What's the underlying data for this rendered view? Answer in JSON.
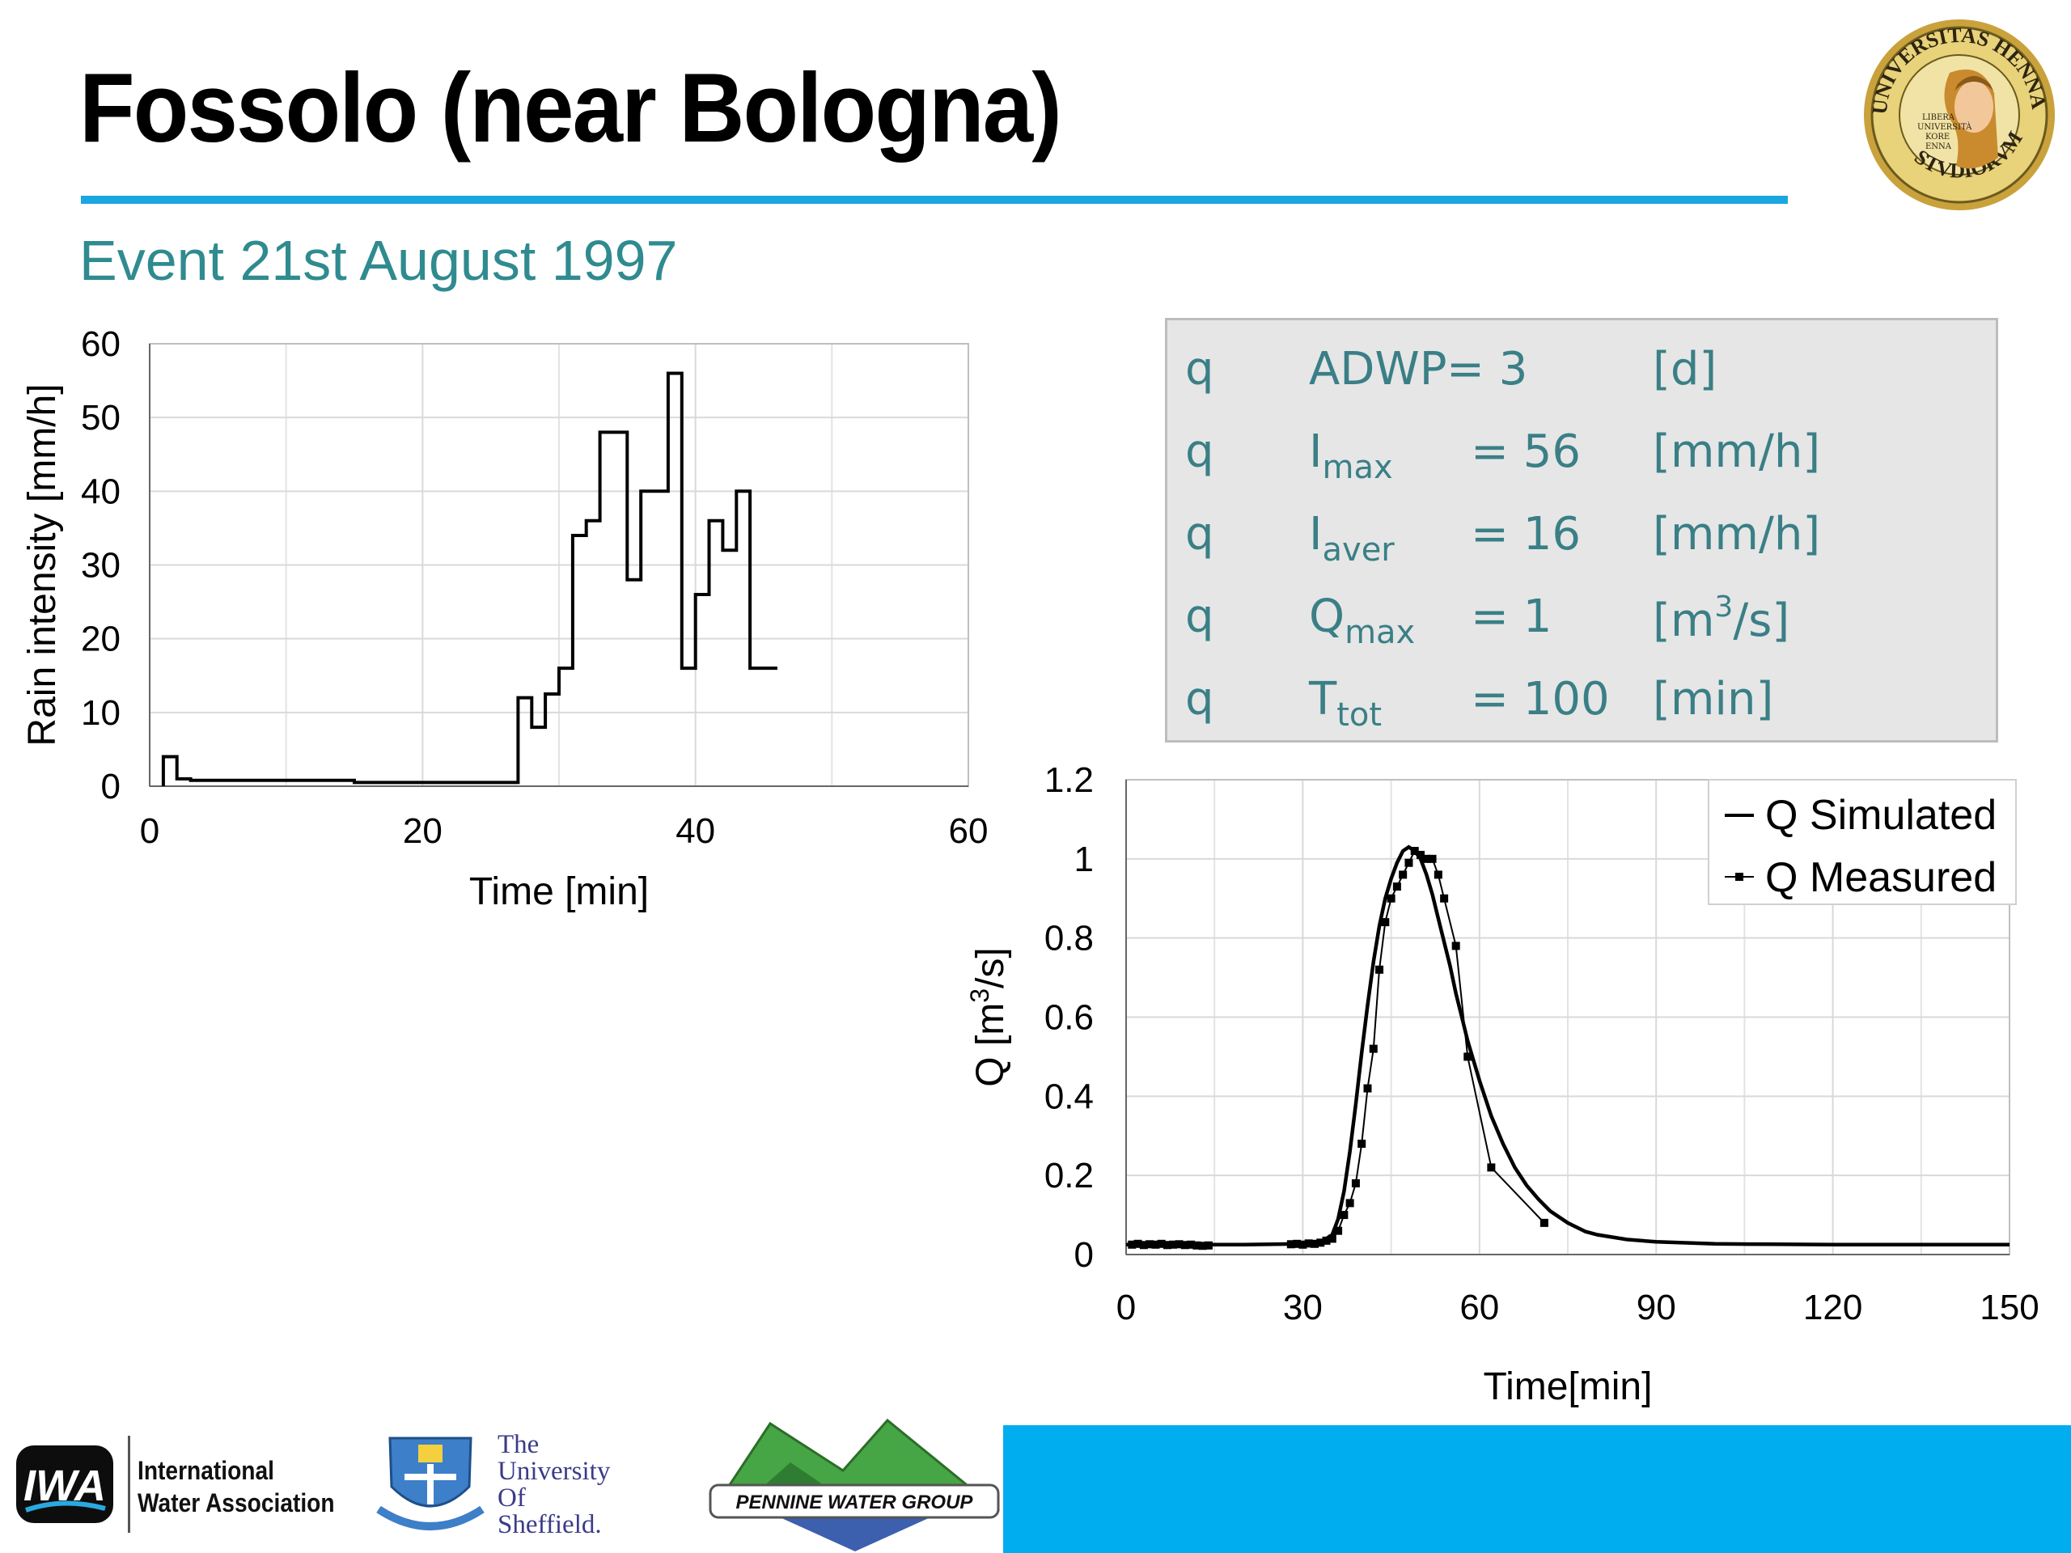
{
  "slide": {
    "title": "Fossolo (near Bologna)",
    "subtitle": "Event 21st August 1997",
    "accent_color": "#1aa7df",
    "subtitle_color": "#2f8b8f",
    "seal_text": "UNIVERSITAS HENNAE · STVDIORVM",
    "seal_inner": [
      "LIBERA",
      "UNIVERSITÀ",
      "KORE",
      "ENNA"
    ]
  },
  "parameters": [
    {
      "bullet": "q",
      "sym": "ADWP",
      "sub": "",
      "eq": "= 3",
      "unit": "[d]"
    },
    {
      "bullet": "q",
      "sym": "I",
      "sub": "max",
      "eq": "= 56",
      "unit": "[mm/h]"
    },
    {
      "bullet": "q",
      "sym": "I",
      "sub": "aver",
      "eq": "= 16",
      "unit": "[mm/h]"
    },
    {
      "bullet": "q",
      "sym": "Q",
      "sub": "max",
      "eq": "= 1",
      "unit_pre": "[m",
      "unit_sup": "3",
      "unit_post": "/s]"
    },
    {
      "bullet": "q",
      "sym": "T",
      "sub": "tot",
      "eq": "= 100",
      "unit": "[min]"
    }
  ],
  "chart_data": [
    {
      "type": "line",
      "style": "step",
      "xlabel": "Time [min]",
      "ylabel": "Rain intensity [mm/h]",
      "xlim": [
        0,
        60
      ],
      "ylim": [
        0,
        60
      ],
      "xticks": [
        "0",
        "20",
        "40",
        "60"
      ],
      "yticks": [
        "0",
        "10",
        "20",
        "30",
        "40",
        "50",
        "60"
      ],
      "grid": true,
      "series": [
        {
          "x": [
            1,
            1,
            2,
            2,
            3,
            3,
            15,
            15,
            27,
            27,
            28,
            28,
            29,
            29,
            30,
            30,
            31,
            31,
            32,
            32,
            33,
            33,
            35,
            35,
            36,
            36,
            38,
            38,
            39,
            39,
            40,
            40,
            41,
            41,
            42,
            42,
            43,
            43,
            44,
            44,
            46
          ],
          "y": [
            0,
            4,
            4,
            1,
            1,
            0.8,
            0.8,
            0.5,
            0.5,
            12,
            12,
            8,
            8,
            12.5,
            12.5,
            16,
            16,
            34,
            34,
            36,
            36,
            48,
            48,
            28,
            28,
            40,
            40,
            56,
            56,
            16,
            16,
            26,
            26,
            36,
            36,
            32,
            32,
            40,
            40,
            16,
            16
          ]
        }
      ]
    },
    {
      "type": "line",
      "xlabel": "Time[min]",
      "ylabel_pre": "Q [m",
      "ylabel_sup": "3",
      "ylabel_post": "/s]",
      "xlim": [
        0,
        150
      ],
      "ylim": [
        0,
        1.2
      ],
      "xticks": [
        "0",
        "30",
        "60",
        "90",
        "120",
        "150"
      ],
      "yticks": [
        "0",
        "0.2",
        "0.4",
        "0.6",
        "0.8",
        "1",
        "1.2"
      ],
      "grid": true,
      "legend": "top-right",
      "series": [
        {
          "name": "Q Simulated",
          "x": [
            0,
            10,
            20,
            30,
            33,
            35,
            36,
            37,
            38,
            39,
            40,
            41,
            42,
            43,
            44,
            45,
            46,
            47,
            48,
            49,
            50,
            51,
            52,
            53,
            54,
            55,
            56,
            57,
            58,
            60,
            62,
            64,
            66,
            68,
            70,
            72,
            75,
            78,
            80,
            85,
            90,
            100,
            110,
            120,
            130,
            140,
            150
          ],
          "y": [
            0.025,
            0.025,
            0.025,
            0.027,
            0.03,
            0.05,
            0.09,
            0.16,
            0.26,
            0.38,
            0.51,
            0.63,
            0.74,
            0.83,
            0.9,
            0.95,
            0.99,
            1.02,
            1.03,
            1.02,
            1.0,
            0.96,
            0.91,
            0.85,
            0.79,
            0.73,
            0.66,
            0.6,
            0.54,
            0.44,
            0.35,
            0.28,
            0.22,
            0.175,
            0.14,
            0.11,
            0.08,
            0.058,
            0.05,
            0.038,
            0.032,
            0.027,
            0.026,
            0.025,
            0.025,
            0.025,
            0.025
          ]
        },
        {
          "name": "Q Measured",
          "x": [
            1,
            2,
            3,
            4,
            5,
            6,
            7,
            8,
            9,
            10,
            11,
            12,
            13,
            14,
            28,
            29,
            30,
            31,
            32,
            33,
            34,
            35,
            36,
            37,
            38,
            39,
            40,
            41,
            42,
            43,
            44,
            45,
            46,
            47,
            48,
            49,
            50,
            51,
            52,
            53,
            54,
            56,
            58,
            62,
            71
          ],
          "y": [
            0.025,
            0.027,
            0.024,
            0.026,
            0.025,
            0.027,
            0.024,
            0.025,
            0.026,
            0.024,
            0.025,
            0.023,
            0.022,
            0.023,
            0.026,
            0.027,
            0.025,
            0.028,
            0.027,
            0.03,
            0.035,
            0.04,
            0.06,
            0.1,
            0.13,
            0.18,
            0.28,
            0.42,
            0.52,
            0.72,
            0.84,
            0.9,
            0.93,
            0.96,
            0.99,
            1.02,
            1.01,
            1.0,
            1.0,
            0.96,
            0.9,
            0.78,
            0.5,
            0.22,
            0.08
          ]
        }
      ]
    }
  ],
  "footer": {
    "iwa_logo": "IWA",
    "iwa_line1": "International",
    "iwa_line2": "Water Association",
    "sheffield_lines": [
      "The",
      "University",
      "Of",
      "Sheffield."
    ],
    "pennine": "PENNINE WATER GROUP",
    "band_color": "#00aeef"
  }
}
